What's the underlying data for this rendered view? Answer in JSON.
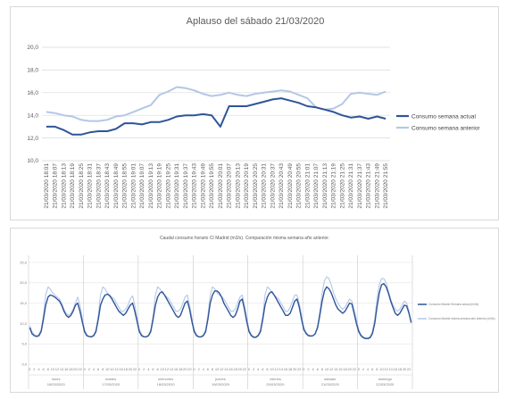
{
  "chart_data": [
    {
      "type": "line",
      "title": "Aplauso del sábado 21/03/2020",
      "xlabel": "",
      "ylabel": "",
      "ylim": [
        10,
        20
      ],
      "yticks": [
        "10,0",
        "12,0",
        "14,0",
        "16,0",
        "18,0",
        "20,0"
      ],
      "grid": "horizontal",
      "legend": "right",
      "x": [
        "21/03/2020 18:01",
        "21/03/2020 18:07",
        "21/03/2020 18:13",
        "21/03/2020 18:19",
        "21/03/2020 18:25",
        "21/03/2020 18:31",
        "21/03/2020 18:37",
        "21/03/2020 18:43",
        "21/03/2020 18:49",
        "21/03/2020 18:55",
        "21/03/2020 19:01",
        "21/03/2020 19:07",
        "21/03/2020 19:13",
        "21/03/2020 19:19",
        "21/03/2020 19:25",
        "21/03/2020 19:31",
        "21/03/2020 19:37",
        "21/03/2020 19:43",
        "21/03/2020 19:49",
        "21/03/2020 19:55",
        "21/03/2020 20:01",
        "21/03/2020 20:07",
        "21/03/2020 20:13",
        "21/03/2020 20:19",
        "21/03/2020 20:25",
        "21/03/2020 20:31",
        "21/03/2020 20:37",
        "21/03/2020 20:43",
        "21/03/2020 20:49",
        "21/03/2020 20:55",
        "21/03/2020 21:01",
        "21/03/2020 21:07",
        "21/03/2020 21:13",
        "21/03/2020 21:19",
        "21/03/2020 21:25",
        "21/03/2020 21:31",
        "21/03/2020 21:37",
        "21/03/2020 21:43",
        "21/03/2020 21:49",
        "21/03/2020 21:55"
      ],
      "series": [
        {
          "name": "Consumo semana actual",
          "color": "#2f5597",
          "values": [
            13.0,
            13.0,
            12.7,
            12.3,
            12.3,
            12.5,
            12.6,
            12.6,
            12.8,
            13.3,
            13.3,
            13.2,
            13.4,
            13.4,
            13.6,
            13.9,
            14.0,
            14.0,
            14.1,
            14.0,
            13.0,
            14.8,
            14.8,
            14.8,
            15.0,
            15.2,
            15.4,
            15.5,
            15.3,
            15.1,
            14.8,
            14.7,
            14.5,
            14.3,
            14.0,
            13.8,
            13.9,
            13.7,
            13.9,
            13.7
          ]
        },
        {
          "name": "Consumo semana anterior",
          "color": "#b4c7e7",
          "values": [
            14.3,
            14.2,
            14.0,
            13.9,
            13.6,
            13.5,
            13.5,
            13.6,
            13.9,
            14.0,
            14.3,
            14.6,
            14.9,
            15.8,
            16.1,
            16.5,
            16.4,
            16.2,
            15.9,
            15.7,
            15.8,
            16.0,
            15.8,
            15.7,
            15.9,
            16.0,
            16.1,
            16.2,
            16.1,
            15.8,
            15.5,
            14.7,
            14.5,
            14.6,
            15.0,
            15.9,
            16.0,
            15.9,
            15.8,
            16.1
          ]
        }
      ]
    },
    {
      "type": "line",
      "title": "Caudal consumo horario CI Madrid (m3/s). Comparación misma semana año anterior.",
      "xlabel": "",
      "ylabel": "",
      "ylim": [
        0,
        25
      ],
      "yticks": [
        "0,0",
        "5,0",
        "10,0",
        "15,0",
        "20,0",
        "25,0"
      ],
      "grid": "horizontal",
      "legend": "right",
      "days": [
        {
          "name": "lunes",
          "date": "16/03/2020"
        },
        {
          "name": "martes",
          "date": "17/03/2020"
        },
        {
          "name": "miércoles",
          "date": "18/03/2020"
        },
        {
          "name": "jueves",
          "date": "19/03/2020"
        },
        {
          "name": "viernes",
          "date": "20/03/2020"
        },
        {
          "name": "sábado",
          "date": "21/03/2020"
        },
        {
          "name": "domingo",
          "date": "22/03/2020"
        }
      ],
      "hour_ticks": [
        "0",
        "2",
        "4",
        "6",
        "8",
        "10",
        "12",
        "14",
        "16",
        "18",
        "20",
        "22"
      ],
      "series": [
        {
          "name": "Consumo Madrid Semana actual (m3/s)",
          "color": "#2f5597",
          "values": [
            9.0,
            7.5,
            7.0,
            6.8,
            7.0,
            8.0,
            11.0,
            14.5,
            16.5,
            17.0,
            16.8,
            16.5,
            16.0,
            15.5,
            14.5,
            13.0,
            12.0,
            11.5,
            12.0,
            13.0,
            14.5,
            15.0,
            13.0,
            10.5,
            8.0,
            7.0,
            6.8,
            6.7,
            7.0,
            8.0,
            11.0,
            14.5,
            16.0,
            17.0,
            17.2,
            16.8,
            16.0,
            15.0,
            14.0,
            13.0,
            12.5,
            12.0,
            12.5,
            13.5,
            14.5,
            15.0,
            13.0,
            10.5,
            8.0,
            7.0,
            6.7,
            6.7,
            7.0,
            8.0,
            11.0,
            14.5,
            16.5,
            17.5,
            17.8,
            17.0,
            16.0,
            15.0,
            14.0,
            13.0,
            12.0,
            11.5,
            12.0,
            13.5,
            15.0,
            15.5,
            13.5,
            10.5,
            8.0,
            7.0,
            6.7,
            6.7,
            7.0,
            8.0,
            11.0,
            15.0,
            17.0,
            18.0,
            18.0,
            17.5,
            16.5,
            15.0,
            14.0,
            13.0,
            12.0,
            11.5,
            12.0,
            13.5,
            15.5,
            16.0,
            13.5,
            10.5,
            8.0,
            7.0,
            6.6,
            6.6,
            7.0,
            8.0,
            11.0,
            14.5,
            16.5,
            17.5,
            17.8,
            17.0,
            16.0,
            15.0,
            14.0,
            13.0,
            12.0,
            12.0,
            12.5,
            14.0,
            15.5,
            16.0,
            14.0,
            11.0,
            8.5,
            7.5,
            7.0,
            6.9,
            7.0,
            7.5,
            9.0,
            12.0,
            15.5,
            18.0,
            19.0,
            18.5,
            17.5,
            16.0,
            14.5,
            13.5,
            13.0,
            12.5,
            13.0,
            14.0,
            15.0,
            14.8,
            12.5,
            10.0,
            8.0,
            7.0,
            6.5,
            6.3,
            6.3,
            6.5,
            7.5,
            10.0,
            14.0,
            17.5,
            19.5,
            19.8,
            19.0,
            17.5,
            15.5,
            14.0,
            12.5,
            12.0,
            12.5,
            13.5,
            14.5,
            14.3,
            12.5,
            10.2
          ]
        },
        {
          "name": "Consumo Madrid misma semana año anterior (m3/s)",
          "color": "#b4c7e7",
          "values": [
            9.5,
            8.0,
            7.3,
            7.0,
            7.3,
            8.5,
            12.0,
            17.0,
            19.0,
            18.5,
            17.5,
            17.0,
            16.5,
            16.0,
            15.0,
            13.5,
            12.5,
            12.0,
            12.5,
            13.5,
            15.0,
            16.5,
            14.5,
            11.5,
            8.5,
            7.3,
            6.8,
            6.8,
            7.2,
            8.5,
            12.0,
            17.0,
            19.0,
            18.5,
            17.5,
            17.0,
            16.5,
            16.0,
            15.0,
            14.0,
            13.0,
            13.0,
            13.5,
            14.5,
            16.0,
            16.8,
            14.5,
            11.5,
            8.5,
            7.3,
            6.8,
            6.8,
            7.2,
            8.5,
            12.0,
            17.0,
            19.0,
            18.5,
            17.5,
            17.0,
            16.5,
            16.0,
            15.0,
            14.0,
            13.0,
            13.0,
            13.5,
            15.0,
            16.5,
            17.0,
            14.5,
            11.5,
            8.5,
            7.3,
            6.8,
            6.8,
            7.2,
            8.5,
            12.0,
            17.0,
            19.0,
            18.5,
            17.5,
            17.0,
            16.5,
            16.0,
            15.0,
            14.0,
            13.0,
            13.0,
            13.5,
            15.0,
            16.5,
            17.0,
            14.5,
            11.5,
            8.5,
            7.3,
            6.8,
            6.8,
            7.2,
            8.5,
            12.0,
            17.0,
            19.0,
            18.5,
            17.5,
            17.0,
            16.5,
            16.0,
            15.0,
            14.0,
            13.0,
            13.0,
            14.0,
            15.5,
            17.0,
            17.0,
            15.0,
            12.0,
            9.0,
            7.8,
            7.2,
            7.0,
            7.0,
            7.5,
            9.5,
            13.0,
            17.5,
            20.5,
            21.5,
            21.0,
            19.5,
            17.5,
            16.0,
            15.0,
            14.0,
            13.5,
            14.0,
            15.0,
            16.0,
            15.5,
            13.5,
            11.0,
            8.5,
            7.3,
            6.8,
            6.5,
            6.5,
            6.8,
            8.0,
            11.0,
            16.0,
            19.5,
            21.0,
            21.0,
            20.0,
            18.0,
            16.0,
            14.5,
            13.5,
            13.0,
            13.5,
            14.5,
            15.5,
            15.0,
            13.0,
            10.5
          ]
        }
      ]
    }
  ]
}
